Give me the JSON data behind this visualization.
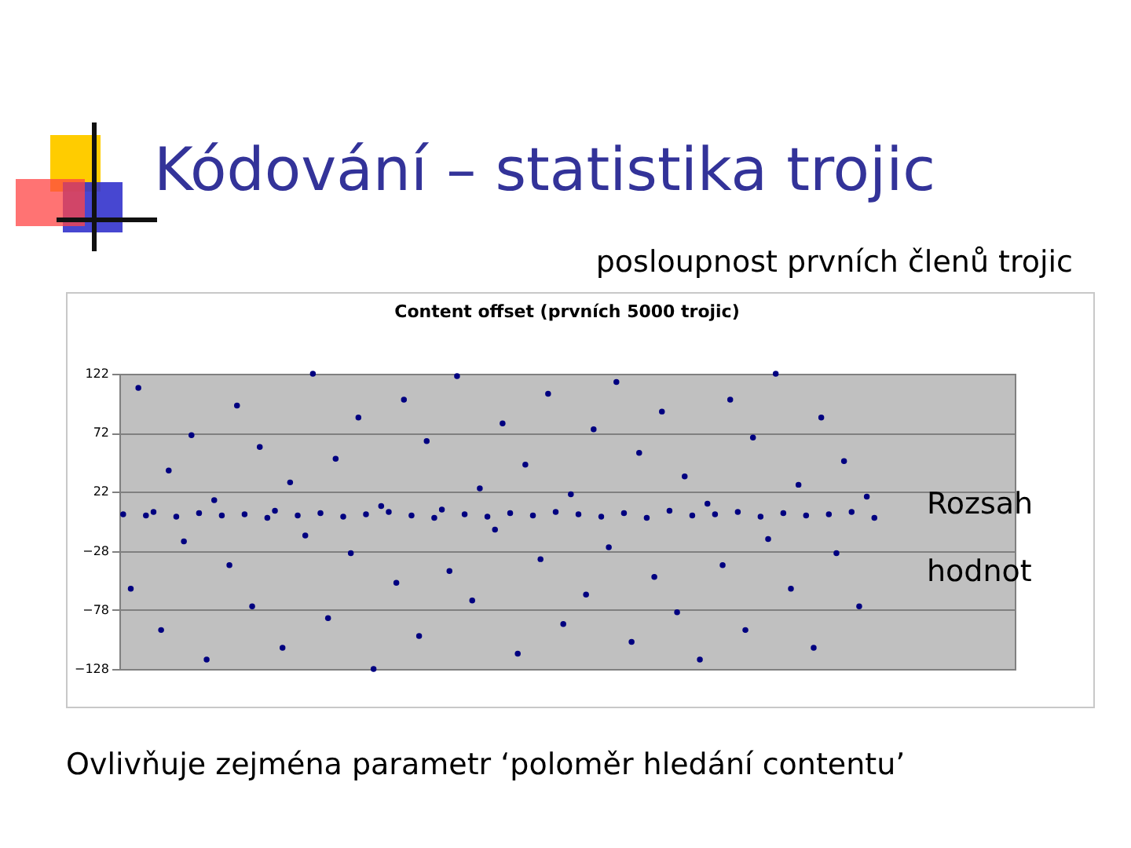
{
  "chart_data": {
    "type": "scatter",
    "title": "Content offset (prvních 5000 trojic)",
    "annotations": [
      "Kódování – statistika trojic",
      "posloupnost prvních členů trojic",
      "Rozsah hodnot",
      "Ovlivňuje zejména parametr ‘poloměr hledání contentu’"
    ],
    "categories": [
      null,
      null,
      null,
      null,
      null,
      null,
      null,
      null,
      null,
      null,
      null,
      null,
      null,
      null,
      null,
      null,
      null,
      null,
      null,
      null,
      null,
      null,
      null,
      null,
      null,
      null,
      null,
      null,
      null,
      null,
      null,
      null,
      null,
      null,
      null,
      null,
      null,
      null,
      null,
      null,
      null,
      null,
      null,
      null,
      null,
      null,
      null,
      null,
      null,
      null,
      null,
      null,
      null,
      null,
      null,
      null,
      null,
      null,
      null,
      null,
      null,
      null,
      null,
      null,
      null,
      null,
      null,
      null,
      null,
      null,
      null,
      null,
      null,
      null,
      null,
      null,
      null,
      null,
      null,
      null,
      null,
      null,
      null,
      null,
      null,
      null,
      null,
      null,
      null,
      null,
      null,
      null,
      null,
      null,
      null,
      null,
      null,
      null,
      null,
      null,
      null,
      null,
      null,
      null,
      null,
      null,
      null,
      null,
      null,
      null,
      null,
      null,
      null,
      null,
      null,
      null,
      null,
      null
    ],
    "series": [
      {
        "color": "#000080",
        "values": [
          3,
          -60,
          110,
          2,
          5,
          -95,
          40,
          1,
          -20,
          70,
          4,
          -120,
          15,
          2,
          -40,
          95,
          3,
          -75,
          60,
          0,
          6,
          -110,
          30,
          2,
          -15,
          122,
          4,
          -85,
          50,
          1,
          -30,
          85,
          3,
          -128,
          10,
          5,
          -55,
          100,
          2,
          -100,
          65,
          0,
          7,
          -45,
          120,
          3,
          -70,
          25,
          1,
          -10,
          80,
          4,
          -115,
          45,
          2,
          -35,
          105,
          5,
          -90,
          20,
          3,
          -65,
          75,
          1,
          -25,
          115,
          4,
          -105,
          55,
          0,
          -50,
          90,
          6,
          -80,
          35,
          2,
          -120,
          12,
          3,
          -40,
          100,
          5,
          -95,
          68,
          1,
          -18,
          122,
          4,
          -60,
          28,
          2,
          -110,
          85,
          3,
          -30,
          48,
          5,
          -75,
          18,
          0,
          null,
          null,
          null,
          null,
          null,
          null,
          null,
          null,
          null,
          null,
          null,
          null,
          null,
          null,
          null,
          null,
          null,
          null
        ]
      }
    ],
    "ylim": [
      -128,
      122
    ],
    "yticks": [
      -128,
      -78,
      -28,
      22,
      72,
      122
    ],
    "grid": "y",
    "marker": "circle",
    "legend": false,
    "tick_labels": "y"
  }
}
